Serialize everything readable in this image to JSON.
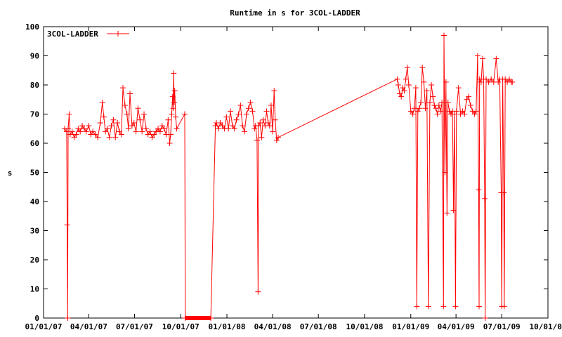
{
  "chart_data": {
    "type": "line",
    "title": "Runtime in s for 3COL-LADDER",
    "xlabel": "",
    "ylabel": "s",
    "ylim": [
      0,
      100
    ],
    "y_ticks": [
      0,
      10,
      20,
      30,
      40,
      50,
      60,
      70,
      80,
      90,
      100
    ],
    "x_tick_labels": [
      "01/01/07",
      "04/01/07",
      "07/01/07",
      "10/01/07",
      "01/01/08",
      "04/01/08",
      "07/01/08",
      "10/01/08",
      "01/01/09",
      "04/01/09",
      "07/01/09",
      "10/01/09"
    ],
    "x_tick_dates": [
      "2007-01-01",
      "2007-04-01",
      "2007-07-01",
      "2007-10-01",
      "2008-01-01",
      "2008-04-01",
      "2008-07-01",
      "2008-10-01",
      "2009-01-01",
      "2009-04-01",
      "2009-07-01",
      "2009-10-01"
    ],
    "xlim": [
      "2007-01-01",
      "2009-10-01"
    ],
    "grid": false,
    "legend_position": "top-left",
    "marker": "plus",
    "series": [
      {
        "name": "3COL-LADDER",
        "color": "#ff0000",
        "points": [
          [
            "2007-02-12",
            65
          ],
          [
            "2007-02-16",
            64
          ],
          [
            "2007-02-17",
            32
          ],
          [
            "2007-02-18",
            0
          ],
          [
            "2007-02-19",
            65
          ],
          [
            "2007-02-21",
            70
          ],
          [
            "2007-02-23",
            63
          ],
          [
            "2007-02-27",
            64
          ],
          [
            "2007-03-03",
            62
          ],
          [
            "2007-03-07",
            63
          ],
          [
            "2007-03-11",
            65
          ],
          [
            "2007-03-15",
            64
          ],
          [
            "2007-03-19",
            66
          ],
          [
            "2007-03-23",
            65
          ],
          [
            "2007-03-27",
            64
          ],
          [
            "2007-04-01",
            66
          ],
          [
            "2007-04-05",
            63
          ],
          [
            "2007-04-09",
            64
          ],
          [
            "2007-04-14",
            63
          ],
          [
            "2007-04-19",
            62
          ],
          [
            "2007-04-24",
            67
          ],
          [
            "2007-04-28",
            74
          ],
          [
            "2007-05-01",
            69
          ],
          [
            "2007-05-04",
            64
          ],
          [
            "2007-05-08",
            65
          ],
          [
            "2007-05-12",
            62
          ],
          [
            "2007-05-16",
            66
          ],
          [
            "2007-05-20",
            68
          ],
          [
            "2007-05-24",
            62
          ],
          [
            "2007-05-28",
            67
          ],
          [
            "2007-06-01",
            64
          ],
          [
            "2007-06-05",
            63
          ],
          [
            "2007-06-08",
            79
          ],
          [
            "2007-06-12",
            73
          ],
          [
            "2007-06-16",
            70
          ],
          [
            "2007-06-19",
            65
          ],
          [
            "2007-06-22",
            77
          ],
          [
            "2007-06-26",
            66
          ],
          [
            "2007-06-30",
            67
          ],
          [
            "2007-07-04",
            64
          ],
          [
            "2007-07-08",
            72
          ],
          [
            "2007-07-12",
            68
          ],
          [
            "2007-07-16",
            64
          ],
          [
            "2007-07-20",
            70
          ],
          [
            "2007-07-24",
            65
          ],
          [
            "2007-07-28",
            63
          ],
          [
            "2007-08-01",
            64
          ],
          [
            "2007-08-05",
            62
          ],
          [
            "2007-08-09",
            63
          ],
          [
            "2007-08-13",
            64
          ],
          [
            "2007-08-17",
            65
          ],
          [
            "2007-08-21",
            64
          ],
          [
            "2007-08-25",
            66
          ],
          [
            "2007-08-29",
            65
          ],
          [
            "2007-09-02",
            63
          ],
          [
            "2007-09-06",
            68
          ],
          [
            "2007-09-09",
            60
          ],
          [
            "2007-09-11",
            63
          ],
          [
            "2007-09-13",
            70
          ],
          [
            "2007-09-15",
            76
          ],
          [
            "2007-09-16",
            72
          ],
          [
            "2007-09-17",
            84
          ],
          [
            "2007-09-18",
            74
          ],
          [
            "2007-09-19",
            78
          ],
          [
            "2007-09-21",
            69
          ],
          [
            "2007-09-23",
            65
          ],
          [
            "2007-10-09",
            70
          ],
          [
            "2007-10-10",
            0
          ],
          [
            "2007-11-30",
            0
          ],
          [
            "2007-12-09",
            66
          ],
          [
            "2007-12-11",
            67
          ],
          [
            "2007-12-15",
            65
          ],
          [
            "2007-12-19",
            67
          ],
          [
            "2007-12-23",
            66
          ],
          [
            "2007-12-27",
            65
          ],
          [
            "2007-12-31",
            69
          ],
          [
            "2008-01-04",
            65
          ],
          [
            "2008-01-08",
            71
          ],
          [
            "2008-01-12",
            66
          ],
          [
            "2008-01-16",
            65
          ],
          [
            "2008-01-20",
            68
          ],
          [
            "2008-01-24",
            70
          ],
          [
            "2008-01-28",
            73
          ],
          [
            "2008-02-01",
            66
          ],
          [
            "2008-02-05",
            64
          ],
          [
            "2008-02-09",
            70
          ],
          [
            "2008-02-13",
            72
          ],
          [
            "2008-02-17",
            74
          ],
          [
            "2008-02-21",
            71
          ],
          [
            "2008-02-25",
            65
          ],
          [
            "2008-02-27",
            66
          ],
          [
            "2008-03-01",
            61
          ],
          [
            "2008-03-03",
            9
          ],
          [
            "2008-03-04",
            66
          ],
          [
            "2008-03-07",
            67
          ],
          [
            "2008-03-10",
            62
          ],
          [
            "2008-03-13",
            68
          ],
          [
            "2008-03-17",
            66
          ],
          [
            "2008-03-20",
            71
          ],
          [
            "2008-03-23",
            67
          ],
          [
            "2008-03-26",
            66
          ],
          [
            "2008-03-29",
            73
          ],
          [
            "2008-04-01",
            64
          ],
          [
            "2008-04-04",
            78
          ],
          [
            "2008-04-06",
            68
          ],
          [
            "2008-04-09",
            61
          ],
          [
            "2008-04-12",
            62
          ],
          [
            "2008-12-05",
            82
          ],
          [
            "2008-12-07",
            80
          ],
          [
            "2008-12-10",
            77
          ],
          [
            "2008-12-13",
            76
          ],
          [
            "2008-12-16",
            79
          ],
          [
            "2008-12-19",
            78
          ],
          [
            "2008-12-22",
            82
          ],
          [
            "2008-12-25",
            86
          ],
          [
            "2008-12-28",
            80
          ],
          [
            "2009-01-01",
            71
          ],
          [
            "2009-01-05",
            70
          ],
          [
            "2009-01-08",
            72
          ],
          [
            "2009-01-11",
            79
          ],
          [
            "2009-01-13",
            4
          ],
          [
            "2009-01-15",
            71
          ],
          [
            "2009-01-18",
            72
          ],
          [
            "2009-01-21",
            74
          ],
          [
            "2009-01-24",
            86
          ],
          [
            "2009-01-27",
            81
          ],
          [
            "2009-01-30",
            72
          ],
          [
            "2009-02-02",
            78
          ],
          [
            "2009-02-05",
            4
          ],
          [
            "2009-02-08",
            74
          ],
          [
            "2009-02-11",
            80
          ],
          [
            "2009-02-14",
            76
          ],
          [
            "2009-02-17",
            73
          ],
          [
            "2009-02-20",
            72
          ],
          [
            "2009-02-23",
            70
          ],
          [
            "2009-02-26",
            73
          ],
          [
            "2009-03-01",
            71
          ],
          [
            "2009-03-04",
            74
          ],
          [
            "2009-03-07",
            4
          ],
          [
            "2009-03-08",
            97
          ],
          [
            "2009-03-10",
            50
          ],
          [
            "2009-03-12",
            81
          ],
          [
            "2009-03-14",
            36
          ],
          [
            "2009-03-16",
            74
          ],
          [
            "2009-03-19",
            71
          ],
          [
            "2009-03-22",
            70
          ],
          [
            "2009-03-25",
            71
          ],
          [
            "2009-03-27",
            37
          ],
          [
            "2009-03-29",
            70
          ],
          [
            "2009-03-31",
            4
          ],
          [
            "2009-04-02",
            71
          ],
          [
            "2009-04-06",
            79
          ],
          [
            "2009-04-10",
            70
          ],
          [
            "2009-04-14",
            71
          ],
          [
            "2009-04-18",
            70
          ],
          [
            "2009-04-22",
            75
          ],
          [
            "2009-04-26",
            76
          ],
          [
            "2009-04-30",
            73
          ],
          [
            "2009-05-04",
            71
          ],
          [
            "2009-05-08",
            70
          ],
          [
            "2009-05-11",
            71
          ],
          [
            "2009-05-14",
            90
          ],
          [
            "2009-05-16",
            44
          ],
          [
            "2009-05-17",
            4
          ],
          [
            "2009-05-18",
            82
          ],
          [
            "2009-05-21",
            81
          ],
          [
            "2009-05-24",
            89
          ],
          [
            "2009-05-26",
            82
          ],
          [
            "2009-05-28",
            41
          ],
          [
            "2009-05-29",
            0
          ],
          [
            "2009-05-31",
            82
          ],
          [
            "2009-06-05",
            81
          ],
          [
            "2009-06-10",
            82
          ],
          [
            "2009-06-15",
            81
          ],
          [
            "2009-06-20",
            89
          ],
          [
            "2009-06-24",
            81
          ],
          [
            "2009-06-27",
            82
          ],
          [
            "2009-06-30",
            43
          ],
          [
            "2009-07-01",
            4
          ],
          [
            "2009-07-03",
            82
          ],
          [
            "2009-07-05",
            43
          ],
          [
            "2009-07-06",
            4
          ],
          [
            "2009-07-08",
            82
          ],
          [
            "2009-07-12",
            81
          ],
          [
            "2009-07-16",
            82
          ],
          [
            "2009-07-20",
            81
          ],
          [
            "2009-07-22",
            81
          ]
        ]
      }
    ]
  }
}
